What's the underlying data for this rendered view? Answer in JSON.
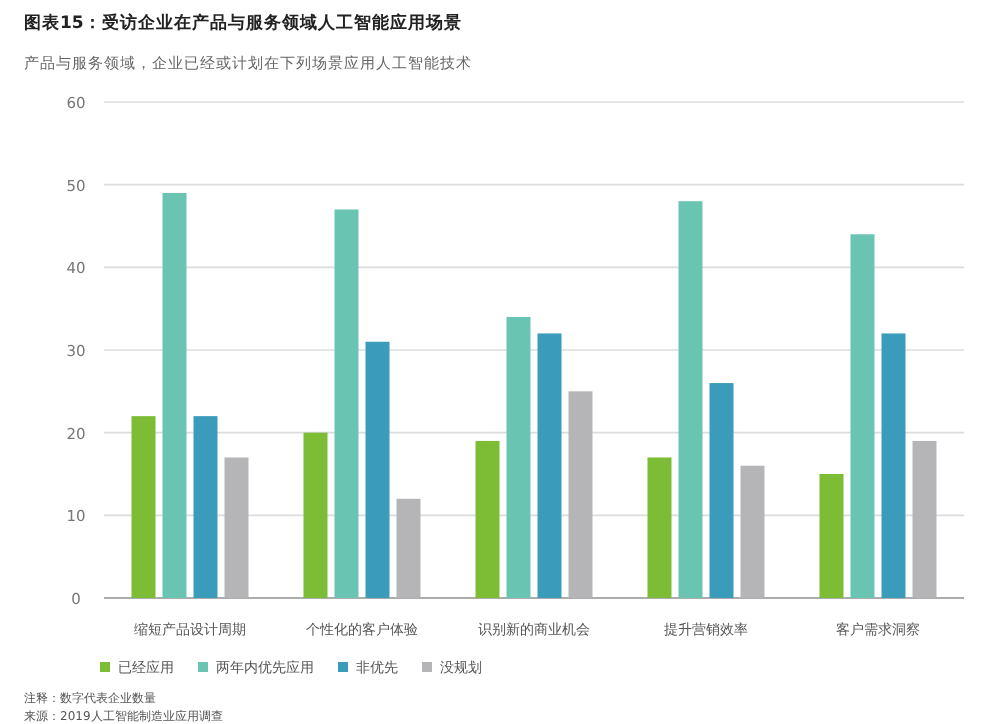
{
  "chart_data": {
    "type": "bar",
    "title": "图表15：受访企业在产品与服务领域人工智能应用场景",
    "subtitle": "产品与服务领域，企业已经或计划在下列场景应用人工智能技术",
    "categories": [
      "缩短产品设计周期",
      "个性化的客户体验",
      "识别新的商业机会",
      "提升营销效率",
      "客户需求洞察"
    ],
    "series": [
      {
        "name": "已经应用",
        "color": "#7dbd36",
        "values": [
          22,
          20,
          19,
          17,
          15
        ]
      },
      {
        "name": "两年内优先应用",
        "color": "#6ac4b2",
        "values": [
          49,
          47,
          34,
          48,
          44
        ]
      },
      {
        "name": "非优先",
        "color": "#3a9bbb",
        "values": [
          22,
          31,
          32,
          26,
          32
        ]
      },
      {
        "name": "没规划",
        "color": "#b5b5b7",
        "values": [
          17,
          12,
          25,
          16,
          19
        ]
      }
    ],
    "ylim": [
      0,
      60
    ],
    "yticks": [
      0,
      10,
      20,
      30,
      40,
      50,
      60
    ],
    "grid": "y",
    "legend": "bottom left",
    "annotations": [
      "注释：数字代表企业数量",
      "来源：2019人工智能制造业应用调查"
    ]
  }
}
